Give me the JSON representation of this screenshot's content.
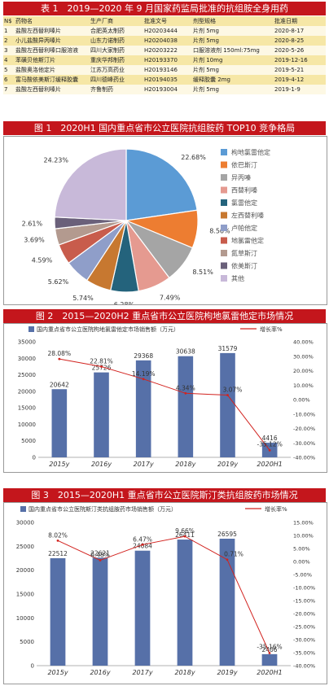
{
  "table1": {
    "title": "表 1　2019—2020 年 9 月国家药监局批准的抗组胺全身用药",
    "headers": [
      "N$",
      "药物名",
      "生产厂商",
      "批准文号",
      "剂型规格",
      "批准日期"
    ],
    "rows": [
      [
        "1",
        "盐酸左西替利嗪片",
        "合肥英太制药",
        "H20203444",
        "片剂 5mg",
        "2020-8-17"
      ],
      [
        "2",
        "小儿盐酸异丙嗪片",
        "山东力诺制药",
        "H20204038",
        "片剂 5mg",
        "2020-8-25"
      ],
      [
        "3",
        "盐酸左西替利嗪口服溶液",
        "四川大家制药",
        "H20203222",
        "口服溶液剂 150ml:75mg",
        "2020-5-26"
      ],
      [
        "4",
        "苯磺贝他斯汀片",
        "重庆华邦制药",
        "H20193370",
        "片剂 10mg",
        "2019-12-16"
      ],
      [
        "5",
        "盐酸奥洛他定片",
        "江苏万高药业",
        "H20193146",
        "片剂 5mg",
        "2019-5-21"
      ],
      [
        "6",
        "富马酸依美斯汀缓释胶囊",
        "四川德峰药业",
        "H20194035",
        "缓释胶囊 2mg",
        "2019-4-12"
      ],
      [
        "7",
        "盐酸左西替利嗪片",
        "齐鲁制药",
        "H20193004",
        "片剂 5mg",
        "2019-1-9"
      ]
    ]
  },
  "figure1": {
    "banner": "图 1　2020H1 国内重点省市公立医院抗组胺药 TOP10 竞争格局",
    "chart_data": {
      "type": "pie",
      "title": "",
      "slices": [
        {
          "name": "枸地氯雷他定",
          "value": 22.68,
          "label": "22.68%",
          "color": "#5b9bd5"
        },
        {
          "name": "依巴斯汀",
          "value": 8.56,
          "label": "8.56%",
          "color": "#ed7d31"
        },
        {
          "name": "异丙嗪",
          "value": 8.51,
          "label": "8.51%",
          "color": "#a5a5a5"
        },
        {
          "name": "西替利嗪",
          "value": 7.49,
          "label": "7.49%",
          "color": "#e59a90"
        },
        {
          "name": "氯雷他定",
          "value": 6.28,
          "label": "6.28%",
          "color": "#24637c"
        },
        {
          "name": "左西替利嗪",
          "value": 5.74,
          "label": "5.74%",
          "color": "#c77830"
        },
        {
          "name": "卢帕他定",
          "value": 5.62,
          "label": "5.62%",
          "color": "#8f9ec9"
        },
        {
          "name": "地氯雷他定",
          "value": 4.59,
          "label": "4.59%",
          "color": "#c85c4c"
        },
        {
          "name": "氮草斯汀",
          "value": 3.69,
          "label": "3.69%",
          "color": "#b39a8f"
        },
        {
          "name": "依美斯汀",
          "value": 2.61,
          "label": "2.61%",
          "color": "#6a607a"
        },
        {
          "name": "其他",
          "value": 24.23,
          "label": "24.23%",
          "color": "#c8b9d9"
        }
      ]
    }
  },
  "figure2": {
    "banner": "图 2　2015—2020H2 重点省市公立医院枸地氯雷他定市场情况",
    "chart_data": {
      "type": "bar",
      "title": "",
      "categories": [
        "2015y",
        "2016y",
        "2017y",
        "2018y",
        "2019y",
        "2020H1"
      ],
      "series": [
        {
          "name": "国内重点省市公立医院枸地氯雷他定市场销售额（万元）",
          "kind": "bar",
          "axis": "left",
          "values": [
            20642,
            25726,
            29368,
            30638,
            31579,
            4416
          ],
          "labels": [
            "20642",
            "25726",
            "29368",
            "30638",
            "31579",
            "4416"
          ],
          "color": "#5670a8"
        },
        {
          "name": "增长率%",
          "kind": "line",
          "axis": "right",
          "values": [
            28.08,
            22.81,
            14.19,
            4.34,
            3.07,
            -35.12
          ],
          "labels": [
            "28.08%",
            "22.81%",
            "14.19%",
            "4.34%",
            "3.07%",
            "-35.12%"
          ],
          "color": "#d2231f"
        }
      ],
      "ylim": [
        0,
        35000
      ],
      "yticks": [
        "0",
        "5000",
        "10000",
        "15000",
        "20000",
        "25000",
        "30000",
        "35000"
      ],
      "y2lim": [
        -40,
        40
      ],
      "y2ticks": [
        "-40.00%",
        "-30.00%",
        "-20.00%",
        "-10.00%",
        "0.00%",
        "10.00%",
        "20.00%",
        "30.00%",
        "40.00%"
      ],
      "legend": "top"
    }
  },
  "figure3": {
    "banner": "图 3　2015—2020H1 重点省市公立医院斯汀类抗组胺药市场情况",
    "chart_data": {
      "type": "bar",
      "title": "",
      "categories": [
        "2015y",
        "2016y",
        "2017y",
        "2018y",
        "2019y",
        "2020H1"
      ],
      "series": [
        {
          "name": "国内重点省市公立医院斯汀类抗组胺药市场销售额（万元）",
          "kind": "bar",
          "axis": "left",
          "values": [
            22512,
            22621,
            24084,
            26411,
            26595,
            2406
          ],
          "labels": [
            "22512",
            "22621",
            "24084",
            "26411",
            "26595",
            "2406"
          ],
          "color": "#5670a8"
        },
        {
          "name": "增长率%",
          "kind": "line",
          "axis": "right",
          "values": [
            8.02,
            0.48,
            6.47,
            9.66,
            0.71,
            -35.16
          ],
          "labels": [
            "8.02%",
            "0.48%",
            "6.47%",
            "9.66%",
            "0.71%",
            "-35.16%"
          ],
          "color": "#d2231f"
        }
      ],
      "ylim": [
        0,
        30000
      ],
      "yticks": [
        "0",
        "5000",
        "10000",
        "15000",
        "20000",
        "25000",
        "30000"
      ],
      "y2lim": [
        -40,
        15
      ],
      "y2ticks": [
        "-40.00%",
        "-35.00%",
        "-30.00%",
        "-25.00%",
        "-20.00%",
        "-15.00%",
        "-10.00%",
        "-5.00%",
        "0.00%",
        "5.00%",
        "10.00%",
        "15.00%"
      ],
      "legend": "top"
    }
  }
}
